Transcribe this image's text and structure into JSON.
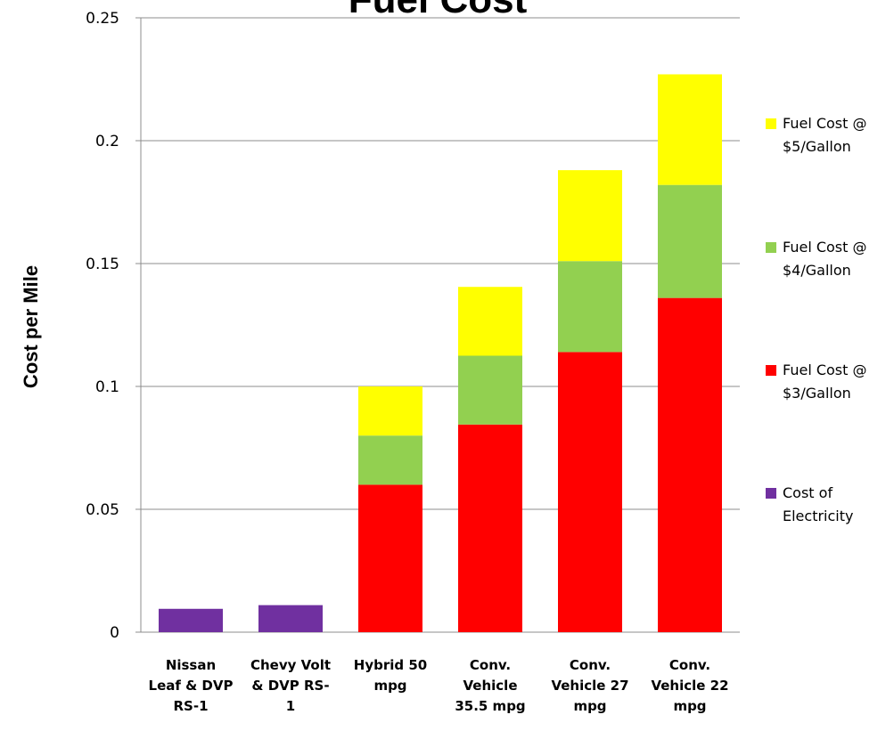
{
  "chart_data": {
    "type": "bar",
    "stacked": true,
    "title": "Fuel Cost",
    "ylabel": "Cost per Mile",
    "xlabel": "",
    "ylim": [
      0,
      0.25
    ],
    "yticks": [
      "0",
      "0.05",
      "0.1",
      "0.15",
      "0.2",
      "0.25"
    ],
    "grid": true,
    "legend_position": "right",
    "categories": [
      [
        "Nissan",
        "Leaf & DVP",
        "RS-1"
      ],
      [
        "Chevy Volt",
        "& DVP RS-",
        "1"
      ],
      [
        "Hybrid 50",
        "mpg"
      ],
      [
        "Conv.",
        "Vehicle",
        "35.5 mpg"
      ],
      [
        "Conv.",
        "Vehicle 27",
        "mpg"
      ],
      [
        "Conv.",
        "Vehicle 22",
        "mpg"
      ]
    ],
    "series": [
      {
        "name": "Cost of Electricity",
        "color": "#7030A0",
        "values": [
          0.0095,
          0.011,
          0,
          0,
          0,
          0
        ]
      },
      {
        "name": "Fuel Cost @ $3/Gallon",
        "color": "#FF0000",
        "values": [
          0,
          0,
          0.06,
          0.0845,
          0.114,
          0.136
        ]
      },
      {
        "name": "Fuel Cost @ $4/Gallon",
        "color": "#92D050",
        "values": [
          0,
          0,
          0.02,
          0.028,
          0.037,
          0.046
        ]
      },
      {
        "name": "Fuel Cost @ $5/Gallon",
        "color": "#FFFF00",
        "values": [
          0,
          0,
          0.02,
          0.028,
          0.037,
          0.045
        ]
      }
    ],
    "legend": [
      {
        "lines": [
          "Fuel Cost @",
          "$5/Gallon"
        ],
        "color": "#FFFF00"
      },
      {
        "lines": [
          "Fuel Cost @",
          "$4/Gallon"
        ],
        "color": "#92D050"
      },
      {
        "lines": [
          "Fuel Cost @",
          "$3/Gallon"
        ],
        "color": "#FF0000"
      },
      {
        "lines": [
          "Cost of",
          "Electricity"
        ],
        "color": "#7030A0"
      }
    ]
  }
}
